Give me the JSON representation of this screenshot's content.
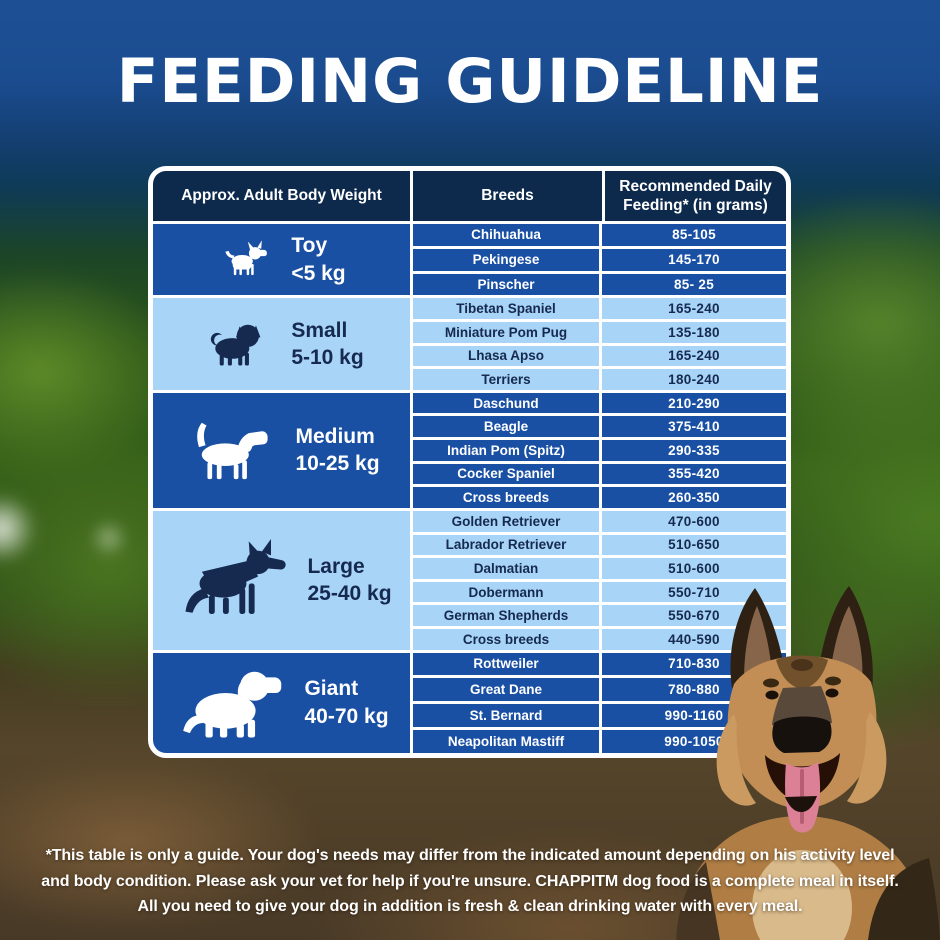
{
  "title": "FEEDING GUIDELINE",
  "table": {
    "columns": [
      "Approx. Adult Body Weight",
      "Breeds",
      "Recommended Daily Feeding* (in grams)"
    ],
    "groups": [
      {
        "size": "Toy",
        "weight": "<5 kg",
        "icon": "chihuahua-icon",
        "theme": "blue",
        "rows": [
          {
            "breed": "Chihuahua",
            "grams": "85-105"
          },
          {
            "breed": "Pekingese",
            "grams": "145-170"
          },
          {
            "breed": "Pinscher",
            "grams": "85- 25"
          }
        ]
      },
      {
        "size": "Small",
        "weight": "5-10 kg",
        "icon": "pug-icon",
        "theme": "light",
        "rows": [
          {
            "breed": "Tibetan Spaniel",
            "grams": "165-240"
          },
          {
            "breed": "Miniature Pom Pug",
            "grams": "135-180"
          },
          {
            "breed": "Lhasa Apso",
            "grams": "165-240"
          },
          {
            "breed": "Terriers",
            "grams": "180-240"
          }
        ]
      },
      {
        "size": "Medium",
        "weight": "10-25 kg",
        "icon": "beagle-icon",
        "theme": "blue",
        "rows": [
          {
            "breed": "Daschund",
            "grams": "210-290"
          },
          {
            "breed": "Beagle",
            "grams": "375-410"
          },
          {
            "breed": "Indian Pom (Spitz)",
            "grams": "290-335"
          },
          {
            "breed": "Cocker Spaniel",
            "grams": "355-420"
          },
          {
            "breed": "Cross breeds",
            "grams": "260-350"
          }
        ]
      },
      {
        "size": "Large",
        "weight": "25-40 kg",
        "icon": "german-shepherd-icon",
        "theme": "light",
        "rows": [
          {
            "breed": "Golden Retriever",
            "grams": "470-600"
          },
          {
            "breed": "Labrador Retriever",
            "grams": "510-650"
          },
          {
            "breed": "Dalmatian",
            "grams": "510-600"
          },
          {
            "breed": "Dobermann",
            "grams": "550-710"
          },
          {
            "breed": "German Shepherds",
            "grams": "550-670"
          },
          {
            "breed": "Cross breeds",
            "grams": "440-590"
          }
        ]
      },
      {
        "size": "Giant",
        "weight": "40-70 kg",
        "icon": "st-bernard-icon",
        "theme": "blue",
        "rows": [
          {
            "breed": "Rottweiler",
            "grams": "710-830"
          },
          {
            "breed": "Great Dane",
            "grams": "780-880"
          },
          {
            "breed": "St. Bernard",
            "grams": "990-1160"
          },
          {
            "breed": "Neapolitan Mastiff",
            "grams": "990-1050"
          }
        ]
      }
    ]
  },
  "footnote": "*This table is only a guide. Your dog's needs may differ from the indicated amount depending on his activity level and body condition. Please ask your vet for help if you're unsure. CHAPPITM dog food is a complete meal in itself. All you need to give your dog in addition is fresh & clean drinking water with every meal.",
  "colors": {
    "background_blue": "#1c4f93",
    "header_navy": "#0d2a4d",
    "row_blue": "#1a50a4",
    "row_light_blue": "#a7d4f7",
    "text_dark_navy": "#16294e",
    "text_white": "#ffffff"
  }
}
